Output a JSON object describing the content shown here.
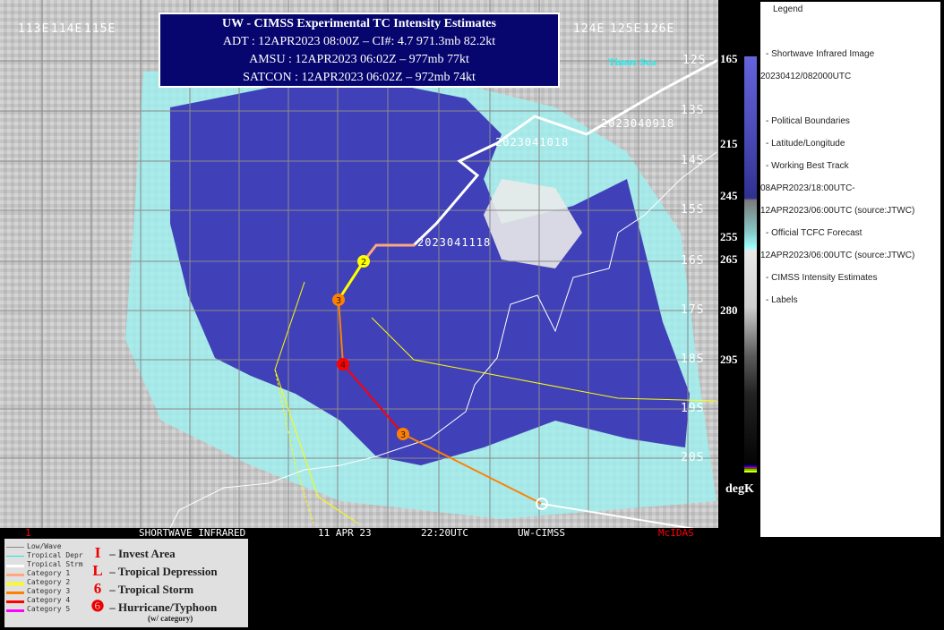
{
  "info_box": {
    "title": "UW - CIMSS Experimental TC Intensity Estimates",
    "adt": "ADT : 12APR2023 08:00Z –  CI#: 4.7   971.3mb   82.2kt",
    "amsu": "AMSU : 12APR2023 06:02Z –  977mb   77kt",
    "satcon": "SATCON : 12APR2023 06:02Z –  972mb   74kt"
  },
  "map": {
    "longitude_labels": [
      "113E",
      "114E",
      "115E",
      "124E",
      "125E",
      "126E"
    ],
    "latitude_labels": [
      "12S",
      "13S",
      "14S",
      "15S",
      "16S",
      "17S",
      "18S",
      "19S",
      "20S"
    ],
    "sea_label": "Timor Sea",
    "track_labels": [
      "2023040918",
      "2023041018",
      "2023041118"
    ],
    "storm_symbols": [
      {
        "category": "2",
        "color": "#ffff00"
      },
      {
        "category": "3",
        "color": "#ff8000"
      },
      {
        "category": "4",
        "color": "#ff0000"
      },
      {
        "category": "3",
        "color": "#ff8000"
      },
      {
        "category": "",
        "color": "#ffffff"
      }
    ],
    "watermark": "CIMSS"
  },
  "strip": {
    "frame": "1",
    "product": "SHORTWAVE INFRARED",
    "date": "11 APR 23",
    "time": "22:20UTC",
    "source": "UW-CIMSS",
    "system": "McIDAS"
  },
  "colorbar": {
    "ticks": [
      "165",
      "215",
      "245",
      "255",
      "265",
      "280",
      "295"
    ],
    "unit": "degK"
  },
  "legend": {
    "title": "Legend",
    "items": [
      "-  Shortwave Infrared Image",
      "20230412/082000UTC",
      "-  Political Boundaries",
      "-  Latitude/Longitude",
      "-  Working Best Track",
      "08APR2023/18:00UTC-",
      "12APR2023/06:00UTC    (source:JTWC)",
      "-  Official TCFC Forecast",
      "12APR2023/06:00UTC  (source:JTWC)",
      "-  CIMSS Intensity Estimates",
      "-  Labels"
    ]
  },
  "intensity_legend": {
    "lines": [
      {
        "label": "Low/Wave",
        "color": "#888888"
      },
      {
        "label": "Tropical Depr",
        "color": "#20e0e0"
      },
      {
        "label": "Tropical Strm",
        "color": "#ffffff"
      },
      {
        "label": "Category 1",
        "color": "#ffa880"
      },
      {
        "label": "Category 2",
        "color": "#ffff00"
      },
      {
        "label": "Category 3",
        "color": "#ff8000"
      },
      {
        "label": "Category 4",
        "color": "#ff0000"
      },
      {
        "label": "Category 5",
        "color": "#ff00ff"
      }
    ],
    "symbols": [
      {
        "glyph": "I",
        "label": "– Invest Area"
      },
      {
        "glyph": "L",
        "label": "– Tropical Depression"
      },
      {
        "glyph": "6",
        "label": "– Tropical Storm"
      },
      {
        "glyph": "❻",
        "label": "– Hurricane/Typhoon"
      }
    ],
    "note": "(w/ category)"
  }
}
